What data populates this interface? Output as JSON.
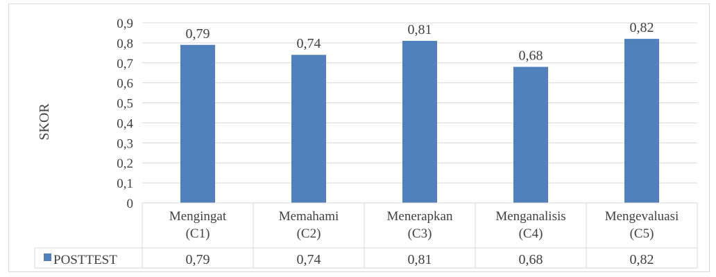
{
  "chart_data": {
    "type": "bar",
    "ylabel": "SKOR",
    "ylim": [
      0,
      0.9
    ],
    "yticks": [
      "0",
      "0,1",
      "0,2",
      "0,3",
      "0,4",
      "0,5",
      "0,6",
      "0,7",
      "0,8",
      "0,9"
    ],
    "categories": [
      [
        "Mengingat",
        "(C1)"
      ],
      [
        "Memahami",
        "(C2)"
      ],
      [
        "Menerapkan",
        "(C3)"
      ],
      [
        "Menganalisis",
        "(C4)"
      ],
      [
        "Mengevaluasi",
        "(C5)"
      ]
    ],
    "series": [
      {
        "name": "POSTTEST",
        "values": [
          0.79,
          0.74,
          0.81,
          0.68,
          0.82
        ],
        "labels": [
          "0,79",
          "0,74",
          "0,81",
          "0,68",
          "0,82"
        ],
        "color": "#4f81bd"
      }
    ],
    "grid": true,
    "data_table": true,
    "legend": "data-table-left"
  }
}
